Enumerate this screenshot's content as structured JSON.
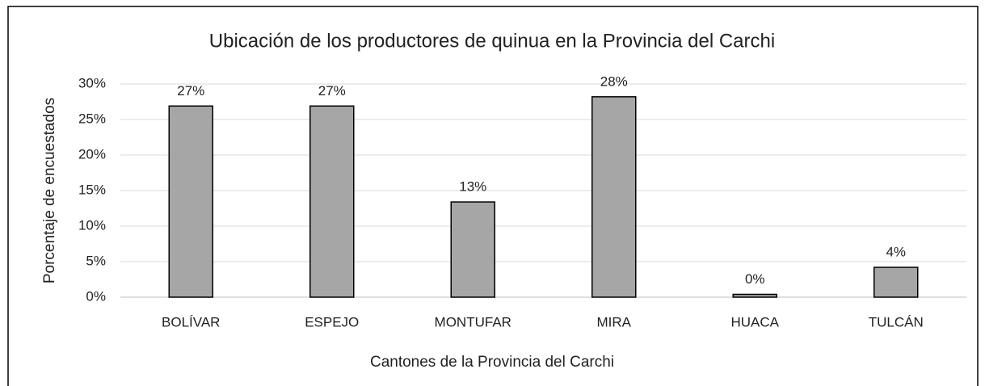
{
  "chart_data": {
    "type": "bar",
    "title": "Ubicación de los productores de quinua en la Provincia del Carchi",
    "xlabel": "Cantones de la Provincia del Carchi",
    "ylabel": "Porcentaje de encuestados",
    "categories": [
      "BOLÍVAR",
      "ESPEJO",
      "MONTUFAR",
      "MIRA",
      "HUACA",
      "TULCÁN"
    ],
    "values": [
      26.9,
      26.9,
      13.4,
      28.2,
      0.4,
      4.2
    ],
    "value_labels": [
      "27%",
      "27%",
      "13%",
      "28%",
      "0%",
      "4%"
    ],
    "color": "#a6a6a6",
    "ylim": [
      0,
      30
    ],
    "yticks": [
      {
        "value": 0,
        "label": "0%"
      },
      {
        "value": 5,
        "label": "5%"
      },
      {
        "value": 10,
        "label": "10%"
      },
      {
        "value": 15,
        "label": "15%"
      },
      {
        "value": 20,
        "label": "20%"
      },
      {
        "value": 25,
        "label": "25%"
      },
      {
        "value": 30,
        "label": "30%"
      }
    ],
    "grid": true
  }
}
